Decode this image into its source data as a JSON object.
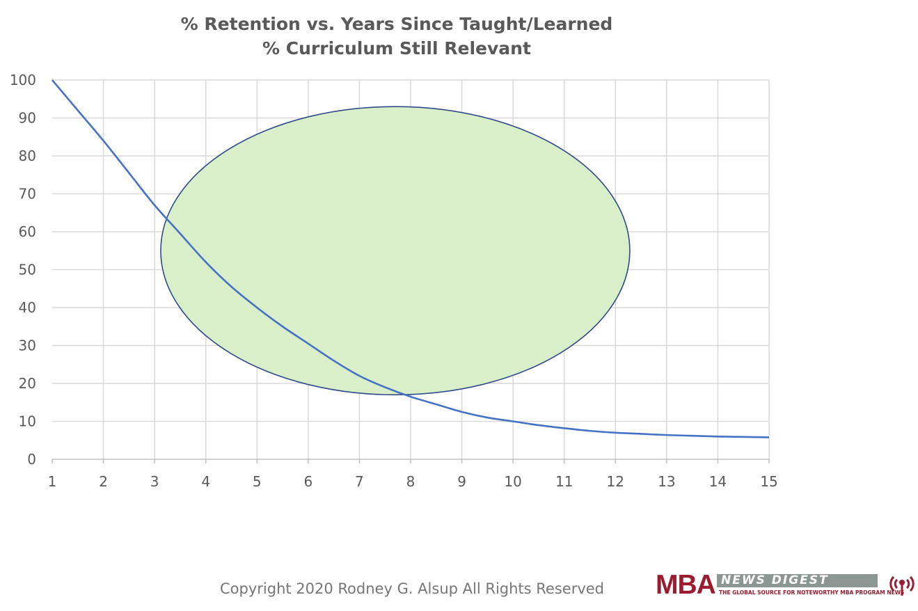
{
  "chart_data": {
    "type": "line",
    "title": "% Retention vs. Years Since Taught/Learned",
    "subtitle": "% Curriculum Still Relevant",
    "xlabel": "",
    "ylabel": "",
    "x": [
      1,
      1.5,
      2,
      2.5,
      3,
      3.5,
      4,
      4.5,
      5,
      5.5,
      6,
      6.5,
      7,
      7.5,
      8,
      8.5,
      9,
      9.5,
      10,
      10.5,
      11,
      11.5,
      12,
      12.5,
      13,
      13.5,
      14,
      14.5,
      15
    ],
    "xticks": [
      1,
      2,
      3,
      4,
      5,
      6,
      7,
      8,
      9,
      10,
      11,
      12,
      13,
      14,
      15
    ],
    "xlim": [
      1,
      15
    ],
    "ylim": [
      0,
      100
    ],
    "yticks": [
      0,
      10,
      20,
      30,
      40,
      50,
      60,
      70,
      80,
      90,
      100
    ],
    "grid": true,
    "series": [
      {
        "color": "#4472c4",
        "values": [
          100,
          92,
          84,
          75.5,
          67,
          59.5,
          52,
          45.5,
          40,
          35,
          30.5,
          26,
          22,
          19,
          16.5,
          14.5,
          12.5,
          11,
          10,
          9,
          8.2,
          7.5,
          7,
          6.7,
          6.4,
          6.2,
          6,
          5.9,
          5.8
        ]
      }
    ],
    "annotation": {
      "shape": "ellipse",
      "cx": 7.7,
      "cy": 55,
      "rx": 4.58,
      "ry": 38,
      "fill": "#d9efc9",
      "stroke": "#2f4a8a"
    }
  },
  "footer": {
    "copyright": "Copyright 2020 Rodney G. Alsup All Rights Reserved"
  },
  "logo": {
    "mba": "MBA",
    "news": "NEWS DIGEST",
    "tagline": "THE GLOBAL SOURCE FOR NOTEWORTHY MBA PROGRAM NEWS",
    "color": "#9b1b30"
  }
}
